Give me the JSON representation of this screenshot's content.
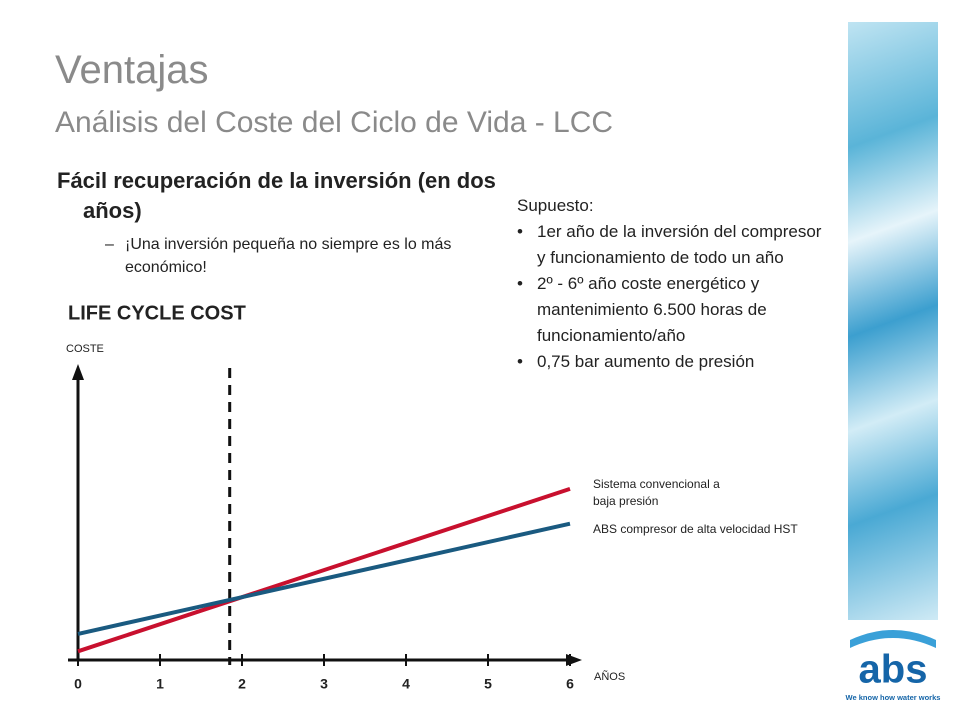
{
  "slide": {
    "title": "Ventajas",
    "subtitle": "Análisis del Coste del Ciclo de Vida - LCC",
    "bullet": "Fácil recuperación de la inversión (en dos años)",
    "sub_bullet": "¡Una inversión pequeña no siempre es lo más económico!",
    "assumption": {
      "heading": "Supuesto:",
      "items": [
        "1er año de la inversión del compresor y funcionamiento de todo un año",
        "2º - 6º año coste energético y mantenimiento  6.500 horas de funcionamiento/año",
        "0,75 bar aumento de presión"
      ]
    }
  },
  "logo": {
    "text": "abs",
    "tagline": "We know how water works"
  },
  "chart_data": {
    "type": "line",
    "title": "LIFE CYCLE COST",
    "y_label": "COSTE",
    "x_label": "AÑOS",
    "x": [
      0,
      6
    ],
    "xlim": [
      0,
      6
    ],
    "xticks": [
      0,
      1,
      2,
      3,
      4,
      5,
      6
    ],
    "ylim": [
      0,
      100
    ],
    "vline": 1.85,
    "series": [
      {
        "name": "Sistema convencional a baja presión",
        "color": "#c8102e",
        "values": [
          3,
          59
        ]
      },
      {
        "name": "ABS compresor de alta velocidad HST",
        "color": "#1a5a80",
        "values": [
          9,
          47
        ]
      }
    ]
  }
}
